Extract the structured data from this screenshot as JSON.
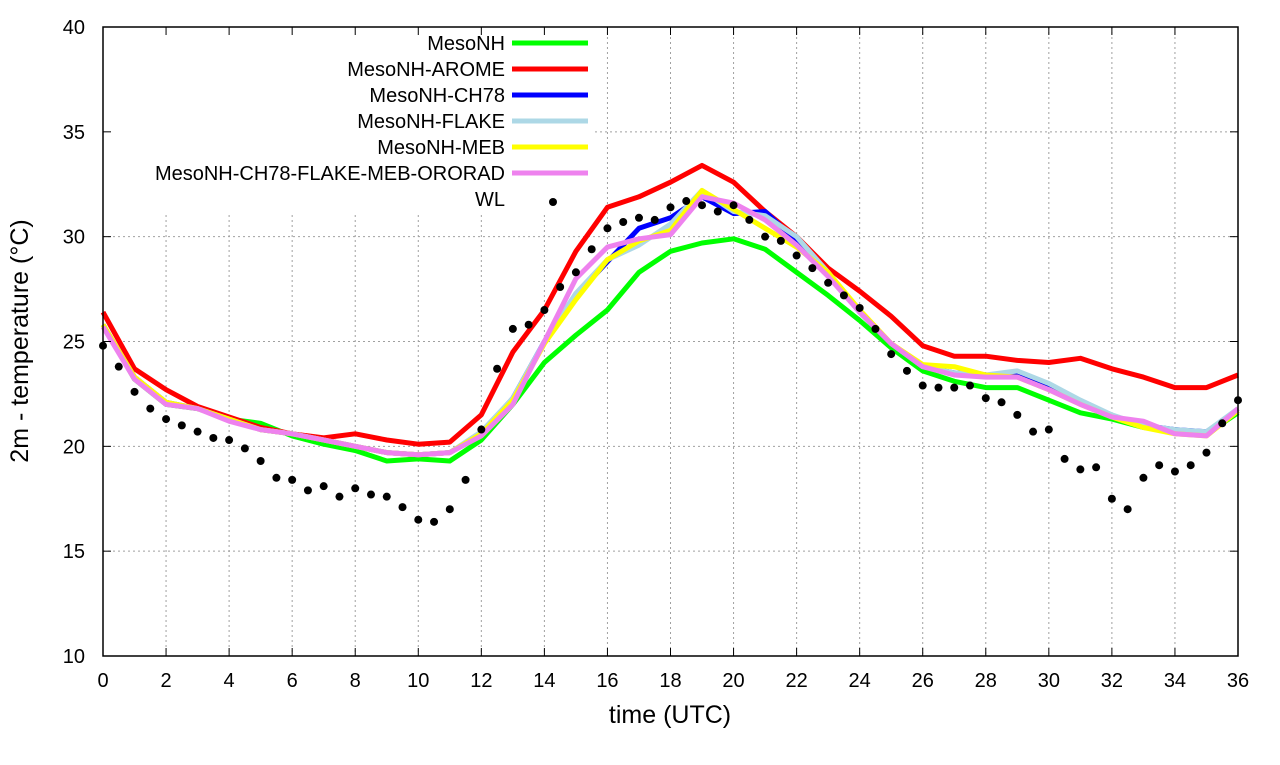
{
  "chart_data": {
    "type": "line",
    "title": "",
    "xlabel": "time (UTC)",
    "ylabel": "2m - temperature (°C)",
    "xlim": [
      0,
      36
    ],
    "ylim": [
      10,
      40
    ],
    "xticks": [
      0,
      2,
      4,
      6,
      8,
      10,
      12,
      14,
      16,
      18,
      20,
      22,
      24,
      26,
      28,
      30,
      32,
      34,
      36
    ],
    "yticks": [
      10,
      15,
      20,
      25,
      30,
      35,
      40
    ],
    "grid": true,
    "legend_position": "top-left",
    "x": [
      0,
      1,
      2,
      3,
      4,
      5,
      6,
      7,
      8,
      9,
      10,
      11,
      12,
      13,
      14,
      15,
      16,
      17,
      18,
      19,
      20,
      21,
      22,
      23,
      24,
      25,
      26,
      27,
      28,
      29,
      30,
      31,
      32,
      33,
      34,
      35,
      36
    ],
    "series": [
      {
        "name": "MesoNH",
        "color": "#00ff00",
        "values": [
          25.8,
          23.2,
          22.0,
          21.8,
          21.3,
          21.1,
          20.5,
          20.1,
          19.8,
          19.3,
          19.4,
          19.3,
          20.3,
          22.0,
          24.0,
          25.3,
          26.5,
          28.3,
          29.3,
          29.7,
          29.9,
          29.4,
          28.3,
          27.2,
          26.0,
          24.7,
          23.6,
          23.1,
          22.8,
          22.8,
          22.2,
          21.6,
          21.3,
          20.9,
          20.8,
          20.6,
          21.6
        ]
      },
      {
        "name": "MesoNH-AROME",
        "color": "#ff0000",
        "values": [
          26.4,
          23.7,
          22.7,
          21.9,
          21.4,
          20.9,
          20.6,
          20.4,
          20.6,
          20.3,
          20.1,
          20.2,
          21.5,
          24.5,
          26.5,
          29.3,
          31.4,
          31.9,
          32.6,
          33.4,
          32.6,
          31.2,
          30.0,
          28.5,
          27.4,
          26.2,
          24.8,
          24.3,
          24.3,
          24.1,
          24.0,
          24.2,
          23.7,
          23.3,
          22.8,
          22.8,
          23.4
        ]
      },
      {
        "name": "MesoNH-CH78",
        "color": "#0000ff",
        "values": [
          25.8,
          23.3,
          22.1,
          21.8,
          21.3,
          20.8,
          20.6,
          20.3,
          20.0,
          19.7,
          19.6,
          19.7,
          20.6,
          22.3,
          25.0,
          27.2,
          28.8,
          30.4,
          30.9,
          31.9,
          31.1,
          31.2,
          29.8,
          28.2,
          26.4,
          24.9,
          23.8,
          23.5,
          23.4,
          23.4,
          22.8,
          22.1,
          21.4,
          21.0,
          20.8,
          20.7,
          21.7
        ]
      },
      {
        "name": "MesoNH-FLAKE",
        "color": "#add8e6",
        "values": [
          25.8,
          23.3,
          22.1,
          21.8,
          21.3,
          20.8,
          20.6,
          20.3,
          20.0,
          19.7,
          19.6,
          19.7,
          20.7,
          22.3,
          25.0,
          27.3,
          28.9,
          29.6,
          30.6,
          32.2,
          31.2,
          31.0,
          30.0,
          28.3,
          26.4,
          24.9,
          23.8,
          23.5,
          23.4,
          23.6,
          23.0,
          22.2,
          21.5,
          21.0,
          20.8,
          20.7,
          21.8
        ]
      },
      {
        "name": "MesoNH-MEB",
        "color": "#ffff00",
        "values": [
          25.8,
          23.3,
          22.1,
          21.8,
          21.3,
          20.8,
          20.6,
          20.3,
          20.0,
          19.7,
          19.6,
          19.7,
          20.6,
          22.2,
          24.9,
          27.0,
          28.9,
          29.8,
          30.3,
          32.2,
          31.3,
          30.4,
          29.5,
          28.3,
          26.5,
          24.9,
          23.9,
          23.8,
          23.4,
          23.3,
          22.7,
          22.0,
          21.4,
          20.9,
          20.6,
          20.5,
          21.7
        ]
      },
      {
        "name": "MesoNH-CH78-FLAKE-MEB-ORORAD",
        "color": "#ee82ee",
        "values": [
          25.7,
          23.2,
          22.0,
          21.8,
          21.2,
          20.8,
          20.6,
          20.3,
          20.0,
          19.7,
          19.6,
          19.7,
          20.5,
          22.0,
          25.0,
          28.0,
          29.5,
          29.9,
          30.1,
          31.9,
          31.6,
          30.8,
          29.6,
          28.1,
          26.4,
          24.9,
          23.8,
          23.4,
          23.3,
          23.3,
          22.7,
          22.0,
          21.4,
          21.2,
          20.6,
          20.5,
          21.8
        ]
      }
    ],
    "points": {
      "name": "WL",
      "color": "#000000",
      "x": [
        0,
        0.5,
        1,
        1.5,
        2,
        2.5,
        3,
        3.5,
        4,
        4.5,
        5,
        5.5,
        6,
        6.5,
        7,
        7.5,
        8,
        8.5,
        9,
        9.5,
        10,
        10.5,
        11,
        11.5,
        12,
        12.5,
        13,
        13.5,
        14,
        14.5,
        15,
        15.5,
        16,
        16.5,
        17,
        17.5,
        18,
        18.5,
        19,
        19.5,
        20,
        20.5,
        21,
        21.5,
        22,
        22.5,
        23,
        23.5,
        24,
        24.5,
        25,
        25.5,
        26,
        26.5,
        27,
        27.5,
        28,
        28.5,
        29,
        29.5,
        30,
        30.5,
        31,
        31.5,
        32,
        32.5,
        33,
        33.5,
        34,
        34.5,
        35,
        35.5,
        36
      ],
      "values": [
        24.8,
        23.8,
        22.6,
        21.8,
        21.3,
        21.0,
        20.7,
        20.4,
        20.3,
        19.9,
        19.3,
        18.5,
        18.4,
        17.9,
        18.1,
        17.6,
        18.0,
        17.7,
        17.6,
        17.1,
        16.5,
        16.4,
        17.0,
        18.4,
        20.8,
        23.7,
        25.6,
        25.8,
        26.5,
        27.6,
        28.3,
        29.4,
        30.4,
        30.7,
        30.9,
        30.8,
        31.4,
        31.7,
        31.5,
        31.2,
        31.5,
        30.8,
        30.0,
        29.8,
        29.1,
        28.5,
        27.8,
        27.2,
        26.6,
        25.6,
        24.4,
        23.6,
        22.9,
        22.8,
        22.8,
        22.9,
        22.3,
        22.1,
        21.5,
        20.7,
        20.8,
        19.4,
        18.9,
        19.0,
        17.5,
        17.0,
        18.5,
        19.1,
        18.8,
        19.1,
        19.7,
        21.1,
        22.2
      ]
    }
  }
}
